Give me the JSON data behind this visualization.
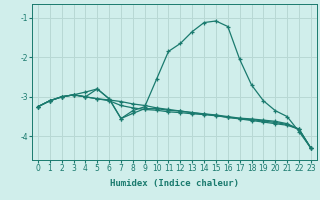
{
  "xlabel": "Humidex (Indice chaleur)",
  "bg_color": "#d0eeeb",
  "line_color": "#1a7a6e",
  "grid_color": "#b8d8d4",
  "xlim": [
    -0.5,
    23.5
  ],
  "ylim": [
    -4.6,
    -0.65
  ],
  "yticks": [
    -4,
    -3,
    -2,
    -1
  ],
  "xticks": [
    0,
    1,
    2,
    3,
    4,
    5,
    6,
    7,
    8,
    9,
    10,
    11,
    12,
    13,
    14,
    15,
    16,
    17,
    18,
    19,
    20,
    21,
    22,
    23
  ],
  "lines": [
    {
      "x": [
        0,
        1,
        2,
        3,
        4,
        5,
        6,
        7,
        8,
        9,
        10,
        11,
        12,
        13,
        14,
        15,
        16,
        17,
        18,
        19,
        20,
        21,
        22,
        23
      ],
      "y": [
        -3.25,
        -3.1,
        -3.0,
        -2.95,
        -3.0,
        -2.8,
        -3.05,
        -3.55,
        -3.35,
        -3.25,
        -2.55,
        -1.85,
        -1.65,
        -1.35,
        -1.12,
        -1.08,
        -1.22,
        -2.05,
        -2.7,
        -3.1,
        -3.35,
        -3.5,
        -3.88,
        -4.3
      ]
    },
    {
      "x": [
        0,
        1,
        2,
        3,
        4,
        5,
        6,
        7,
        8,
        9,
        10,
        11,
        12,
        13,
        14,
        15,
        16,
        17,
        18,
        19,
        20,
        21,
        22,
        23
      ],
      "y": [
        -3.25,
        -3.1,
        -3.0,
        -2.95,
        -3.0,
        -3.05,
        -3.08,
        -3.12,
        -3.18,
        -3.22,
        -3.28,
        -3.32,
        -3.36,
        -3.4,
        -3.44,
        -3.47,
        -3.52,
        -3.56,
        -3.6,
        -3.64,
        -3.68,
        -3.72,
        -3.82,
        -4.3
      ]
    },
    {
      "x": [
        0,
        1,
        2,
        3,
        4,
        5,
        6,
        7,
        8,
        9,
        10,
        11,
        12,
        13,
        14,
        15,
        16,
        17,
        18,
        19,
        20,
        21,
        22,
        23
      ],
      "y": [
        -3.25,
        -3.1,
        -3.0,
        -2.95,
        -3.0,
        -3.05,
        -3.1,
        -3.22,
        -3.28,
        -3.32,
        -3.34,
        -3.38,
        -3.4,
        -3.43,
        -3.45,
        -3.48,
        -3.52,
        -3.55,
        -3.58,
        -3.61,
        -3.65,
        -3.7,
        -3.82,
        -4.3
      ]
    },
    {
      "x": [
        0,
        1,
        2,
        3,
        4,
        5,
        6,
        7,
        8,
        9,
        10,
        11,
        12,
        13,
        14,
        15,
        16,
        17,
        18,
        19,
        20,
        21,
        22,
        23
      ],
      "y": [
        -3.25,
        -3.1,
        -3.0,
        -2.95,
        -2.88,
        -2.8,
        -3.05,
        -3.55,
        -3.42,
        -3.3,
        -3.3,
        -3.34,
        -3.36,
        -3.4,
        -3.43,
        -3.46,
        -3.5,
        -3.54,
        -3.56,
        -3.59,
        -3.62,
        -3.68,
        -3.82,
        -4.3
      ]
    }
  ]
}
